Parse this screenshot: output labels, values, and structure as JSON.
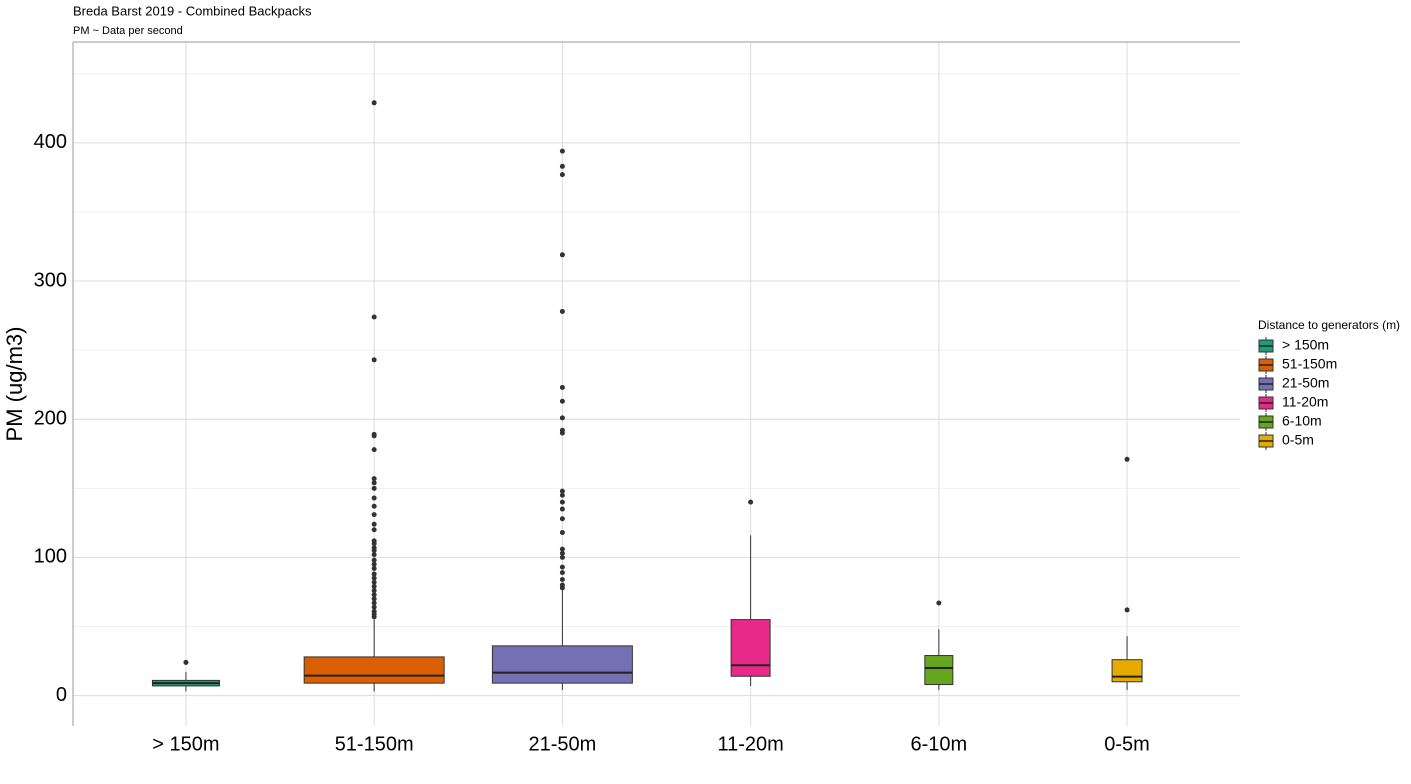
{
  "chart_data": {
    "type": "box",
    "title": "Breda Barst 2019 - Combined Backpacks",
    "subtitle": "PM ~ Data per second",
    "y_label": "PM (ug/m3)",
    "legend_title": "Distance to generators (m)",
    "legend_position": "right",
    "categories": [
      "> 150m",
      "51-150m",
      "21-50m",
      "11-20m",
      "6-10m",
      "0-5m"
    ],
    "ylim": [
      -22,
      473
    ],
    "yticks": [
      0,
      100,
      200,
      300,
      400
    ],
    "y_minor_ticks": [
      50,
      150,
      250,
      350,
      450
    ],
    "grid": true,
    "series": [
      {
        "name": "> 150m",
        "color": "#1b9e77",
        "min": 3,
        "q1": 7,
        "median": 9,
        "q3": 11,
        "max": 17,
        "outliers": [
          24
        ]
      },
      {
        "name": "51-150m",
        "color": "#d95f02",
        "min": 3,
        "q1": 9,
        "median": 14.5,
        "q3": 28,
        "max": 55,
        "outliers": [
          429,
          274,
          243,
          189,
          188,
          178,
          157,
          154,
          150,
          143,
          137,
          131,
          124,
          120,
          112,
          110,
          107,
          105,
          102,
          98,
          95,
          92,
          88,
          85,
          82,
          79,
          76,
          73,
          70,
          67,
          64,
          61,
          59,
          57
        ]
      },
      {
        "name": "21-50m",
        "color": "#7570b3",
        "min": 4,
        "q1": 9,
        "median": 16.6,
        "q3": 36,
        "max": 77,
        "outliers": [
          394,
          383,
          377,
          319,
          278,
          223,
          213,
          201,
          192,
          190,
          148,
          145,
          140,
          135,
          128,
          118,
          106,
          103,
          100,
          93,
          89,
          84,
          80,
          78
        ]
      },
      {
        "name": "11-20m",
        "color": "#e7298a",
        "min": 7,
        "q1": 14,
        "median": 22,
        "q3": 55,
        "max": 116,
        "outliers": [
          140
        ]
      },
      {
        "name": "6-10m",
        "color": "#66a61e",
        "min": 4,
        "q1": 8,
        "median": 20,
        "q3": 29,
        "max": 48,
        "outliers": [
          67
        ]
      },
      {
        "name": "0-5m",
        "color": "#e6ab02",
        "min": 4,
        "q1": 10,
        "median": 13.7,
        "q3": 26,
        "max": 43,
        "outliers": [
          62,
          171
        ]
      }
    ]
  }
}
